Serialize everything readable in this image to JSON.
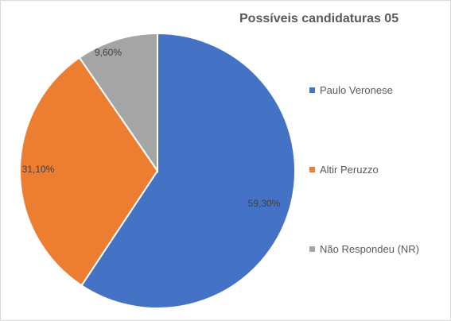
{
  "chart_data": {
    "type": "pie",
    "title": "Possíveis candidaturas 05",
    "categories": [
      "Paulo Veronese",
      "Altir Peruzzo",
      "Não Respondeu (NR)"
    ],
    "values": [
      59.3,
      31.1,
      9.6
    ],
    "labels": [
      "59,30%",
      "31,10%",
      "9,60%"
    ],
    "colors": [
      "#4472c4",
      "#ed7d31",
      "#a5a5a5"
    ],
    "legend_position": "right"
  }
}
